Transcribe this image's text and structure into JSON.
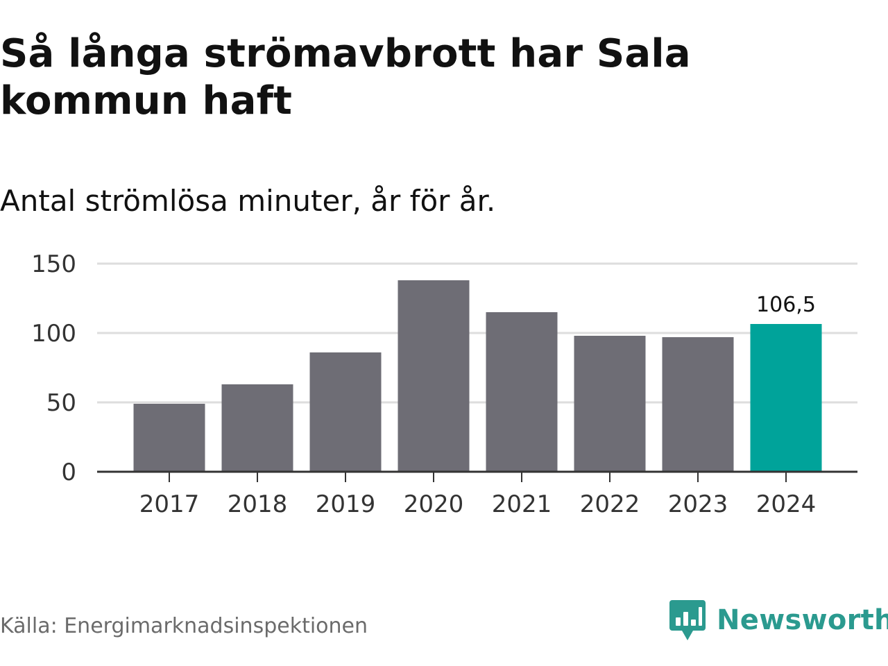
{
  "title": "Så långa strömavbrott har Sala kommun haft",
  "subtitle": "Antal strömlösa minuter, år för år.",
  "source": "Källa: Energimarknadsinspektionen",
  "brand": {
    "name": "Newsworthy",
    "icon": "newsworthy-logo-icon",
    "color": "#2b9a8f"
  },
  "colors": {
    "bar": "#6e6d75",
    "highlight": "#00a39a",
    "grid": "#dddddd",
    "axis": "#333333"
  },
  "chart_data": {
    "type": "bar",
    "title": "Så långa strömavbrott har Sala kommun haft",
    "subtitle": "Antal strömlösa minuter, år för år.",
    "xlabel": "",
    "ylabel": "",
    "categories": [
      "2017",
      "2018",
      "2019",
      "2020",
      "2021",
      "2022",
      "2023",
      "2024"
    ],
    "values": [
      49,
      63,
      86,
      138,
      115,
      98,
      97,
      106.5
    ],
    "highlight_index": 7,
    "data_labels": [
      {
        "index": 7,
        "text": "106,5"
      }
    ],
    "ylim": [
      0,
      150
    ],
    "yticks": [
      0,
      50,
      100,
      150
    ],
    "grid": true,
    "legend": "none"
  }
}
